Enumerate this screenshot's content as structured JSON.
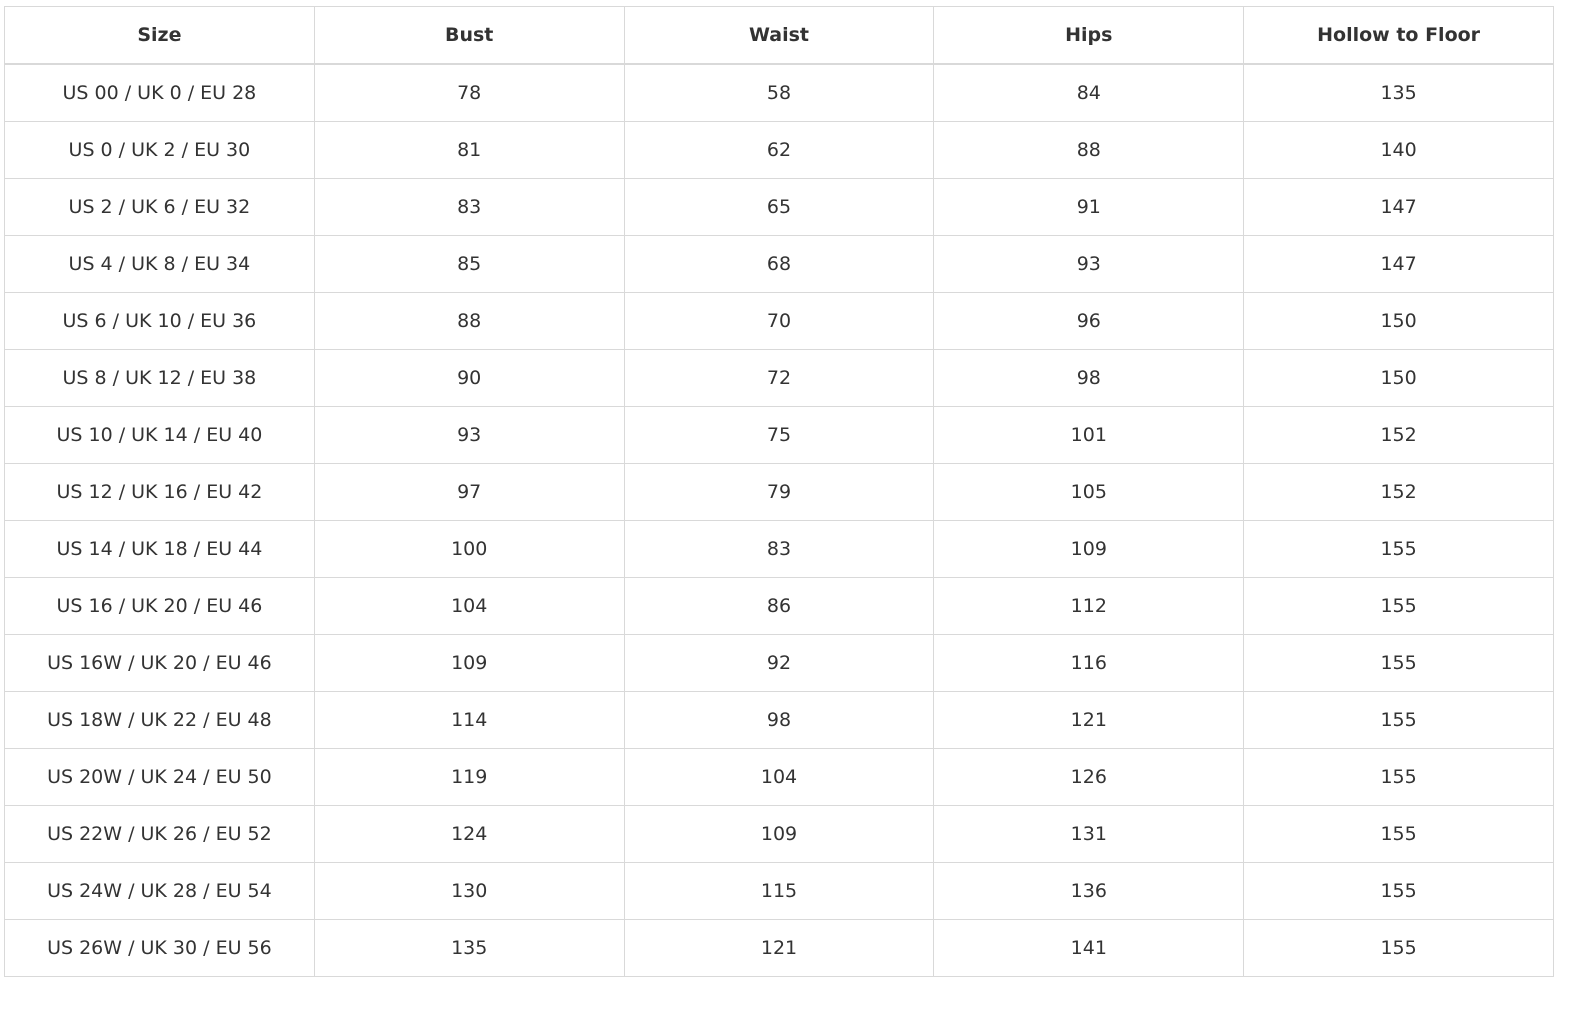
{
  "table": {
    "header": [
      "Size",
      "Bust",
      "Waist",
      "Hips",
      "Hollow to Floor"
    ],
    "rows": [
      [
        "US 00 / UK 0 / EU 28",
        78,
        58,
        84,
        135
      ],
      [
        "US 0 / UK 2 / EU 30",
        81,
        62,
        88,
        140
      ],
      [
        "US 2 / UK 6 / EU 32",
        83,
        65,
        91,
        147
      ],
      [
        "US 4 / UK 8 / EU 34",
        85,
        68,
        93,
        147
      ],
      [
        "US 6 / UK 10 / EU 36",
        88,
        70,
        96,
        150
      ],
      [
        "US 8 / UK 12 / EU 38",
        90,
        72,
        98,
        150
      ],
      [
        "US 10 / UK 14 / EU 40",
        93,
        75,
        101,
        152
      ],
      [
        "US 12 / UK 16 / EU 42",
        97,
        79,
        105,
        152
      ],
      [
        "US 14 / UK 18 / EU 44",
        100,
        83,
        109,
        155
      ],
      [
        "US 16 / UK 20 / EU 46",
        104,
        86,
        112,
        155
      ],
      [
        "US 16W / UK 20 / EU 46",
        109,
        92,
        116,
        155
      ],
      [
        "US 18W / UK 22 / EU 48",
        114,
        98,
        121,
        155
      ],
      [
        "US 20W / UK 24 / EU 50",
        119,
        104,
        126,
        155
      ],
      [
        "US 22W / UK 26 / EU 52",
        124,
        109,
        131,
        155
      ],
      [
        "US 24W / UK 28 / EU 54",
        130,
        115,
        136,
        155
      ],
      [
        "US 26W / UK 30 / EU 56",
        135,
        121,
        141,
        155
      ]
    ]
  }
}
